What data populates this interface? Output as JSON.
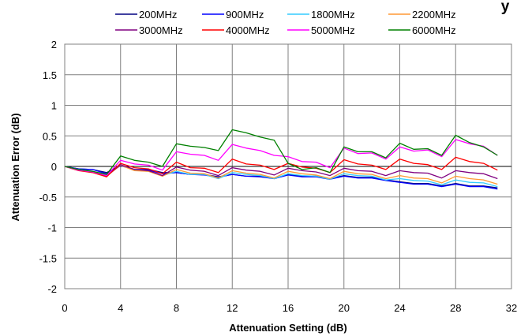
{
  "chart_data": {
    "type": "line",
    "title_fragment": "y",
    "xlabel": "Attenuation Setting (dB)",
    "ylabel": "Attenuation Error (dB)",
    "xlim": [
      0,
      32
    ],
    "ylim": [
      -2,
      2
    ],
    "xticks": [
      0,
      4,
      8,
      12,
      16,
      20,
      24,
      28,
      32
    ],
    "xtick_labels": [
      "0",
      "4",
      "8",
      "12",
      "16",
      "20",
      "24",
      "28",
      "32"
    ],
    "yticks": [
      2,
      1.5,
      1,
      0.5,
      0,
      -0.5,
      -1,
      -1.5,
      -2
    ],
    "ytick_labels": [
      "2",
      "1.5",
      "1",
      "0.5",
      "0",
      "-0.5",
      "-1",
      "-1.5",
      "-2"
    ],
    "grid": true,
    "legend_position": "top",
    "x": [
      0,
      1,
      2,
      3,
      4,
      5,
      6,
      7,
      8,
      9,
      10,
      11,
      12,
      13,
      14,
      15,
      16,
      17,
      18,
      19,
      20,
      21,
      22,
      23,
      24,
      25,
      26,
      27,
      28,
      29,
      30,
      31
    ],
    "series": [
      {
        "name": "200MHz",
        "color": "#000080",
        "values": [
          0,
          -0.04,
          -0.05,
          -0.1,
          0.02,
          -0.05,
          -0.05,
          -0.1,
          -0.1,
          -0.13,
          -0.13,
          -0.17,
          -0.13,
          -0.16,
          -0.16,
          -0.2,
          -0.13,
          -0.16,
          -0.16,
          -0.2,
          -0.15,
          -0.18,
          -0.18,
          -0.22,
          -0.25,
          -0.28,
          -0.28,
          -0.32,
          -0.28,
          -0.32,
          -0.32,
          -0.35
        ]
      },
      {
        "name": "900MHz",
        "color": "#0000ff",
        "values": [
          0,
          -0.04,
          -0.05,
          -0.12,
          0.01,
          -0.05,
          -0.06,
          -0.12,
          -0.1,
          -0.13,
          -0.14,
          -0.18,
          -0.13,
          -0.16,
          -0.17,
          -0.2,
          -0.14,
          -0.17,
          -0.17,
          -0.21,
          -0.16,
          -0.19,
          -0.19,
          -0.23,
          -0.26,
          -0.29,
          -0.29,
          -0.33,
          -0.29,
          -0.33,
          -0.33,
          -0.37
        ]
      },
      {
        "name": "1800MHz",
        "color": "#33ccff",
        "values": [
          0,
          -0.05,
          -0.08,
          -0.15,
          0.02,
          -0.06,
          -0.08,
          -0.15,
          -0.08,
          -0.13,
          -0.13,
          -0.2,
          -0.1,
          -0.13,
          -0.15,
          -0.2,
          -0.12,
          -0.15,
          -0.16,
          -0.21,
          -0.12,
          -0.15,
          -0.16,
          -0.22,
          -0.2,
          -0.23,
          -0.24,
          -0.3,
          -0.22,
          -0.26,
          -0.27,
          -0.33
        ]
      },
      {
        "name": "2200MHz",
        "color": "#ff9933",
        "values": [
          0,
          -0.06,
          -0.09,
          -0.16,
          0.02,
          -0.07,
          -0.08,
          -0.16,
          -0.05,
          -0.11,
          -0.12,
          -0.19,
          -0.07,
          -0.11,
          -0.13,
          -0.19,
          -0.08,
          -0.12,
          -0.14,
          -0.2,
          -0.08,
          -0.12,
          -0.13,
          -0.2,
          -0.15,
          -0.19,
          -0.2,
          -0.27,
          -0.16,
          -0.2,
          -0.22,
          -0.29
        ]
      },
      {
        "name": "3000MHz",
        "color": "#800080",
        "values": [
          0,
          -0.06,
          -0.09,
          -0.16,
          0.03,
          -0.05,
          -0.07,
          -0.15,
          -0.01,
          -0.06,
          -0.08,
          -0.15,
          -0.02,
          -0.06,
          -0.08,
          -0.14,
          -0.03,
          -0.07,
          -0.09,
          -0.15,
          -0.03,
          -0.07,
          -0.08,
          -0.15,
          -0.07,
          -0.1,
          -0.11,
          -0.19,
          -0.07,
          -0.1,
          -0.12,
          -0.2
        ]
      },
      {
        "name": "4000MHz",
        "color": "#ff0000",
        "values": [
          0,
          -0.07,
          -0.1,
          -0.17,
          0.05,
          -0.02,
          -0.04,
          -0.12,
          0.07,
          -0.02,
          -0.03,
          -0.1,
          0.12,
          0.04,
          0.02,
          -0.05,
          0.05,
          -0.01,
          -0.03,
          -0.1,
          0.11,
          0.04,
          0.02,
          -0.05,
          0.12,
          0.05,
          0.03,
          -0.05,
          0.15,
          0.08,
          0.05,
          -0.06
        ]
      },
      {
        "name": "5000MHz",
        "color": "#ff00ff",
        "values": [
          0,
          -0.06,
          -0.09,
          -0.15,
          0.1,
          0.04,
          0.02,
          -0.06,
          0.24,
          0.2,
          0.18,
          0.1,
          0.36,
          0.3,
          0.26,
          0.18,
          0.16,
          0.08,
          0.07,
          -0.02,
          0.3,
          0.21,
          0.22,
          0.12,
          0.32,
          0.25,
          0.27,
          0.16,
          0.44,
          0.37,
          0.33,
          0.18
        ]
      },
      {
        "name": "6000MHz",
        "color": "#008000",
        "values": [
          0,
          -0.05,
          -0.08,
          -0.13,
          0.17,
          0.1,
          0.07,
          0.0,
          0.37,
          0.33,
          0.31,
          0.26,
          0.6,
          0.55,
          0.48,
          0.43,
          0.05,
          -0.05,
          -0.02,
          -0.1,
          0.32,
          0.24,
          0.24,
          0.14,
          0.38,
          0.28,
          0.29,
          0.18,
          0.51,
          0.39,
          0.32,
          0.18
        ]
      }
    ]
  }
}
